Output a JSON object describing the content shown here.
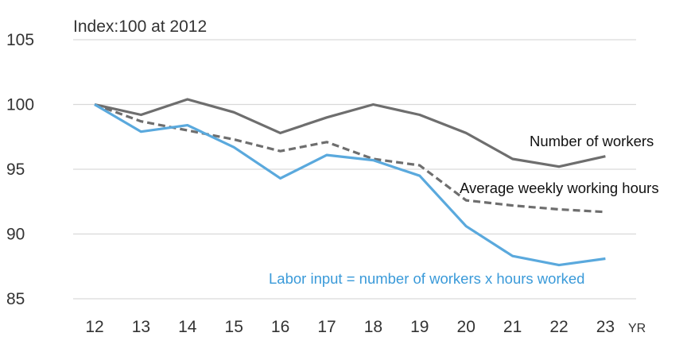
{
  "chart_data": {
    "type": "line",
    "title": "Index:100 at 2012",
    "xlabel": "YR",
    "ylabel": "",
    "ylim": [
      85,
      105
    ],
    "yticks": [
      85,
      90,
      95,
      100,
      105
    ],
    "categories": [
      "12",
      "13",
      "14",
      "15",
      "16",
      "17",
      "18",
      "19",
      "20",
      "21",
      "22",
      "23"
    ],
    "grid": "horizontal",
    "series": [
      {
        "name": "Number of workers",
        "color": "#6e6e6e",
        "style": "solid",
        "values": [
          100.0,
          99.2,
          100.4,
          99.4,
          97.8,
          99.0,
          100.0,
          99.2,
          97.8,
          95.8,
          95.2,
          96.0
        ]
      },
      {
        "name": "Average weekly working hours",
        "color": "#6e6e6e",
        "style": "dashed",
        "values": [
          100.0,
          98.7,
          98.0,
          97.3,
          96.4,
          97.1,
          95.8,
          95.3,
          92.6,
          92.2,
          91.9,
          91.7
        ]
      },
      {
        "name": "Labor input = number of workers x hours worked",
        "color": "#5aa9dd",
        "style": "solid",
        "values": [
          100.0,
          97.9,
          98.4,
          96.7,
          94.3,
          96.1,
          95.7,
          94.5,
          90.6,
          88.3,
          87.6,
          88.1
        ]
      }
    ]
  }
}
